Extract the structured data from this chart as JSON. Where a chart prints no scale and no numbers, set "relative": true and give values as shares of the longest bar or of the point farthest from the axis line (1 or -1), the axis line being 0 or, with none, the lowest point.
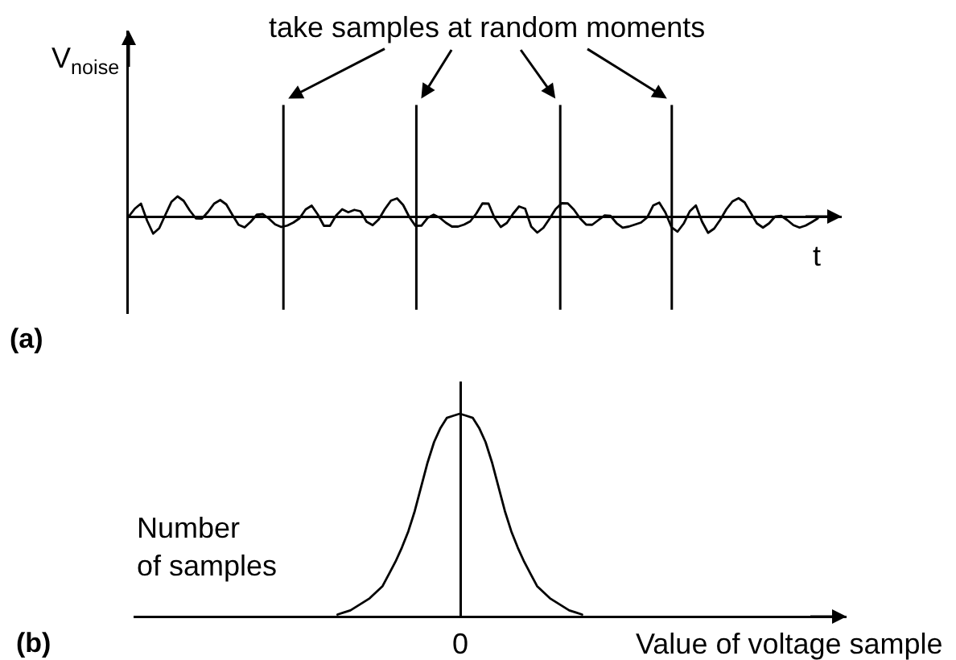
{
  "chart_data": [
    {
      "type": "line",
      "title": "(a)",
      "xlabel": "t",
      "ylabel": "V$_{noise}$",
      "annotations": [
        "take samples at random moments"
      ],
      "relative": true,
      "color": "#000000",
      "categories": [
        null,
        null,
        null,
        null,
        null,
        null,
        null,
        null,
        null,
        null,
        null,
        null,
        null,
        null,
        null,
        null,
        null,
        null,
        null,
        null,
        null,
        null,
        null,
        null,
        null,
        null,
        null,
        null,
        null,
        null,
        null,
        null,
        null,
        null,
        null,
        null,
        null,
        null,
        null,
        null,
        null,
        null,
        null,
        null,
        null,
        null,
        null,
        null,
        null,
        null,
        null,
        null,
        null,
        null,
        null,
        null,
        null,
        null,
        null,
        null,
        null,
        null,
        null,
        null,
        null,
        null,
        null,
        null,
        null,
        null,
        null,
        null,
        null,
        null,
        null,
        null,
        null,
        null,
        null,
        null,
        null,
        null,
        null,
        null,
        null,
        null,
        null,
        null,
        null,
        null,
        null,
        null,
        null,
        null,
        null,
        null,
        null,
        null,
        null,
        null,
        null,
        null,
        null,
        null,
        null,
        null,
        null,
        null,
        null,
        null,
        null,
        null,
        null,
        null
      ],
      "values": [
        0,
        0.39,
        0.64,
        -0.2,
        -0.85,
        -0.58,
        0.08,
        0.73,
        1.0,
        0.78,
        0.3,
        -0.09,
        -0.1,
        0.23,
        0.64,
        0.82,
        0.6,
        0.08,
        -0.41,
        -0.54,
        -0.26,
        0.09,
        0.12,
        -0.11,
        -0.39,
        -0.52,
        -0.45,
        -0.3,
        -0.09,
        0.35,
        0.54,
        0.1,
        -0.46,
        -0.46,
        0.05,
        0.36,
        0.21,
        0.33,
        0.26,
        -0.26,
        -0.43,
        -0.14,
        0.37,
        0.79,
        0.9,
        0.57,
        -0.02,
        -0.46,
        -0.45,
        -0.07,
        0.09,
        -0.06,
        -0.31,
        -0.5,
        -0.5,
        -0.4,
        -0.24,
        0.15,
        0.65,
        0.64,
        -0.08,
        -0.52,
        -0.32,
        0.13,
        0.5,
        0.39,
        -0.5,
        -0.8,
        -0.56,
        -0.11,
        0.37,
        0.66,
        0.65,
        0.34,
        -0.09,
        -0.4,
        -0.41,
        -0.18,
        0.05,
        0.03,
        -0.33,
        -0.55,
        -0.5,
        -0.4,
        -0.3,
        -0.05,
        0.55,
        0.69,
        0.2,
        -0.53,
        -0.75,
        -0.35,
        0.26,
        0.55,
        -0.25,
        -0.81,
        -0.6,
        -0.16,
        0.36,
        0.75,
        0.91,
        0.7,
        0.18,
        -0.34,
        -0.55,
        -0.34,
        0,
        0.03,
        -0.18,
        -0.43,
        -0.55,
        -0.45,
        -0.28,
        -0.09
      ]
    },
    {
      "type": "line",
      "xlabel": "Value of voltage sample",
      "ylabel": "Number\nof samples",
      "annotations": [
        "(b)",
        "0"
      ],
      "relative": true,
      "color": "#000000",
      "categories": [
        null,
        null,
        null,
        null,
        null,
        null,
        null,
        null,
        null,
        null,
        null,
        null,
        null,
        null,
        null,
        null,
        null,
        null,
        null,
        null,
        null,
        null,
        null,
        null,
        null,
        null,
        null,
        null,
        null,
        null,
        null,
        null,
        null,
        null,
        null,
        null,
        null,
        null,
        null
      ],
      "values": [
        0.01,
        0.02,
        0.03,
        0.05,
        0.07,
        0.09,
        0.12,
        0.15,
        0.21,
        0.27,
        0.34,
        0.42,
        0.52,
        0.64,
        0.76,
        0.86,
        0.93,
        0.98,
        0.99,
        1.0,
        0.99,
        0.98,
        0.93,
        0.86,
        0.76,
        0.64,
        0.52,
        0.42,
        0.34,
        0.27,
        0.21,
        0.15,
        0.12,
        0.09,
        0.07,
        0.05,
        0.03,
        0.02,
        0.01
      ]
    }
  ]
}
